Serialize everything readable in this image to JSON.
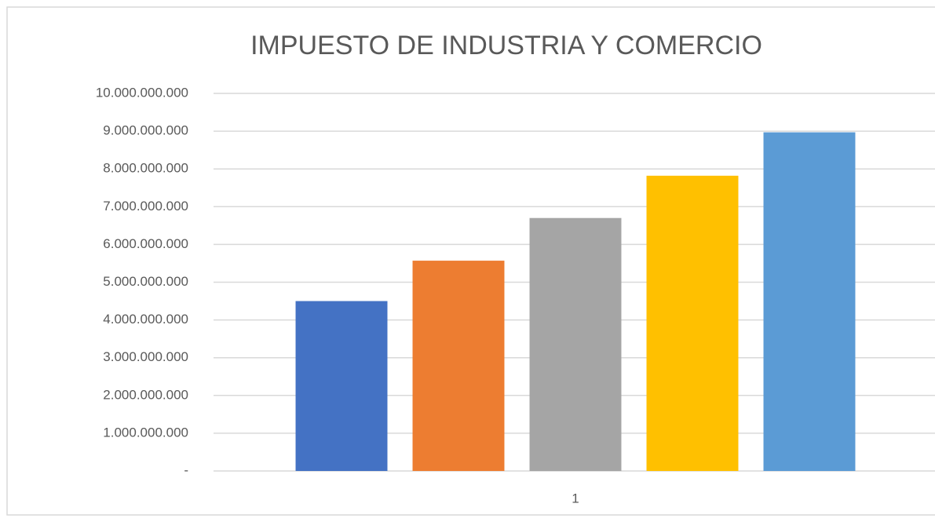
{
  "chart_data": {
    "type": "bar",
    "title": "IMPUESTO DE INDUSTRIA Y COMERCIO",
    "categories": [
      "1"
    ],
    "series": [
      {
        "color": "#4472c4",
        "values": [
          4500000000
        ]
      },
      {
        "color": "#ed7d31",
        "values": [
          5570000000
        ]
      },
      {
        "color": "#a5a5a5",
        "values": [
          6700000000
        ]
      },
      {
        "color": "#ffc000",
        "values": [
          7820000000
        ]
      },
      {
        "color": "#5b9bd5",
        "values": [
          8970000000
        ]
      }
    ],
    "ylim": [
      0,
      10000000000
    ],
    "yticks": [
      {
        "value": 0,
        "label": "-"
      },
      {
        "value": 1000000000,
        "label": "1.000.000.000"
      },
      {
        "value": 2000000000,
        "label": "2.000.000.000"
      },
      {
        "value": 3000000000,
        "label": "3.000.000.000"
      },
      {
        "value": 4000000000,
        "label": "4.000.000.000"
      },
      {
        "value": 5000000000,
        "label": "5.000.000.000"
      },
      {
        "value": 6000000000,
        "label": "6.000.000.000"
      },
      {
        "value": 7000000000,
        "label": "7.000.000.000"
      },
      {
        "value": 8000000000,
        "label": "8.000.000.000"
      },
      {
        "value": 9000000000,
        "label": "9.000.000.000"
      },
      {
        "value": 10000000000,
        "label": "10.000.000.000"
      }
    ],
    "grid": true
  }
}
